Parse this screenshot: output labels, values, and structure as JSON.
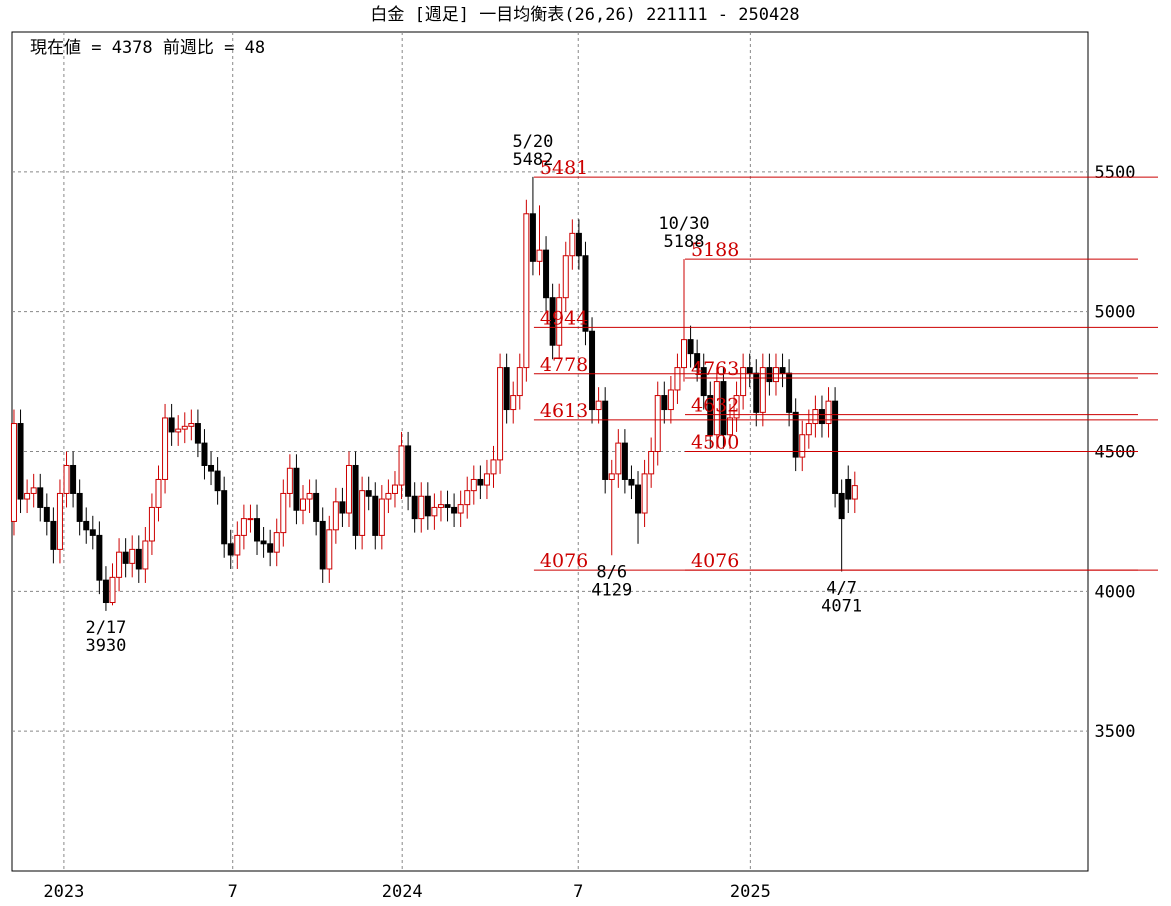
{
  "chart_data": {
    "type": "candlestick",
    "title": "白金 [週足]  一目均衡表(26,26)  221111 - 250428",
    "subtitle": "現在値 = 4378  前週比 = 48",
    "up_color": "#cc0000",
    "down_color": "#000000",
    "level_color": "#cc0000",
    "xlim": [
      -0.3,
      163.5
    ],
    "ylim": [
      3000,
      6000
    ],
    "yticks": [
      3500,
      4000,
      4500,
      5000,
      5500
    ],
    "xticks": [
      {
        "value": 7.6,
        "label": "2023"
      },
      {
        "value": 33.3,
        "label": "7"
      },
      {
        "value": 59.1,
        "label": "2024"
      },
      {
        "value": 85.9,
        "label": "7"
      },
      {
        "value": 112.1,
        "label": "2025"
      }
    ],
    "grid": true,
    "open": [
      4250,
      4600,
      4330,
      4350,
      4370,
      4300,
      4250,
      4150,
      4350,
      4450,
      4350,
      4250,
      4220,
      4200,
      4040,
      3960,
      4050,
      4140,
      4100,
      4150,
      4080,
      4180,
      4300,
      4400,
      4620,
      4570,
      4580,
      4590,
      4600,
      4530,
      4450,
      4430,
      4360,
      4170,
      4130,
      4200,
      4260,
      4260,
      4180,
      4170,
      4140,
      4210,
      4350,
      4440,
      4290,
      4330,
      4350,
      4250,
      4080,
      4220,
      4320,
      4280,
      4450,
      4200,
      4360,
      4340,
      4200,
      4330,
      4350,
      4380,
      4520,
      4340,
      4260,
      4340,
      4270,
      4300,
      4310,
      4300,
      4280,
      4310,
      4360,
      4400,
      4380,
      4420,
      4470,
      4800,
      4650,
      4700,
      4800,
      5350,
      5180,
      5220,
      5050,
      4880,
      5050,
      5200,
      5280,
      5200,
      4930,
      4650,
      4680,
      4400,
      4420,
      4530,
      4400,
      4380,
      4280,
      4420,
      4500,
      4700,
      4650,
      4720,
      4800,
      4900,
      4850,
      4800,
      4700,
      4560,
      4750,
      4560,
      4620,
      4700,
      4800,
      4780,
      4640,
      4800,
      4750,
      4800,
      4780,
      4640,
      4480,
      4560,
      4600,
      4650,
      4600,
      4680,
      4350,
      4400,
      4330
    ],
    "high": [
      4650,
      4650,
      4400,
      4420,
      4420,
      4350,
      4300,
      4400,
      4500,
      4500,
      4400,
      4300,
      4270,
      4250,
      4090,
      4100,
      4190,
      4190,
      4200,
      4200,
      4230,
      4350,
      4450,
      4670,
      4670,
      4630,
      4640,
      4650,
      4650,
      4580,
      4500,
      4480,
      4410,
      4220,
      4250,
      4310,
      4310,
      4310,
      4230,
      4220,
      4260,
      4400,
      4490,
      4490,
      4380,
      4400,
      4400,
      4300,
      4270,
      4370,
      4370,
      4500,
      4500,
      4410,
      4410,
      4390,
      4380,
      4400,
      4430,
      4570,
      4570,
      4390,
      4390,
      4390,
      4350,
      4360,
      4360,
      4350,
      4360,
      4410,
      4450,
      4450,
      4470,
      4520,
      4850,
      4850,
      4750,
      4850,
      5400,
      5482,
      5380,
      5270,
      5100,
      5100,
      5250,
      5330,
      5330,
      5250,
      4980,
      4730,
      4730,
      4470,
      4580,
      4580,
      4450,
      4430,
      4470,
      4550,
      4750,
      4750,
      4770,
      4850,
      5188,
      4950,
      4900,
      4850,
      4750,
      4800,
      4800,
      4670,
      4750,
      4850,
      4850,
      4830,
      4850,
      4850,
      4850,
      4850,
      4830,
      4690,
      4610,
      4650,
      4700,
      4700,
      4730,
      4730,
      4400,
      4450,
      4428
    ],
    "low": [
      4200,
      4280,
      4280,
      4300,
      4250,
      4200,
      4100,
      4100,
      4300,
      4300,
      4200,
      4170,
      4150,
      3990,
      3930,
      3950,
      4000,
      4050,
      4050,
      4030,
      4030,
      4130,
      4250,
      4350,
      4520,
      4520,
      4530,
      4540,
      4480,
      4400,
      4380,
      4310,
      4120,
      4080,
      4080,
      4150,
      4210,
      4130,
      4120,
      4090,
      4090,
      4160,
      4300,
      4240,
      4240,
      4280,
      4200,
      4030,
      4030,
      4170,
      4230,
      4230,
      4150,
      4150,
      4290,
      4150,
      4150,
      4280,
      4300,
      4330,
      4290,
      4210,
      4210,
      4220,
      4220,
      4250,
      4250,
      4230,
      4230,
      4260,
      4310,
      4330,
      4330,
      4370,
      4420,
      4600,
      4600,
      4650,
      4750,
      5130,
      5130,
      5000,
      4830,
      4830,
      5000,
      5150,
      5150,
      4880,
      4600,
      4600,
      4350,
      4129,
      4370,
      4350,
      4330,
      4170,
      4230,
      4370,
      4450,
      4600,
      4600,
      4670,
      4750,
      4800,
      4750,
      4650,
      4510,
      4510,
      4510,
      4510,
      4570,
      4650,
      4730,
      4590,
      4590,
      4700,
      4700,
      4730,
      4590,
      4430,
      4430,
      4510,
      4550,
      4550,
      4550,
      4300,
      4071,
      4280,
      4280
    ],
    "close": [
      4600,
      4330,
      4350,
      4370,
      4300,
      4250,
      4150,
      4350,
      4450,
      4350,
      4250,
      4220,
      4200,
      4040,
      3960,
      4050,
      4140,
      4100,
      4150,
      4080,
      4180,
      4300,
      4400,
      4620,
      4570,
      4580,
      4590,
      4600,
      4530,
      4450,
      4430,
      4360,
      4170,
      4130,
      4200,
      4260,
      4260,
      4180,
      4170,
      4140,
      4210,
      4350,
      4440,
      4290,
      4330,
      4350,
      4250,
      4080,
      4220,
      4320,
      4280,
      4450,
      4200,
      4360,
      4340,
      4200,
      4330,
      4350,
      4380,
      4520,
      4340,
      4260,
      4340,
      4270,
      4300,
      4310,
      4300,
      4280,
      4310,
      4360,
      4400,
      4380,
      4420,
      4470,
      4800,
      4650,
      4700,
      4800,
      5350,
      5180,
      5220,
      5050,
      4880,
      5050,
      5200,
      5280,
      5200,
      4930,
      4650,
      4680,
      4400,
      4420,
      4530,
      4400,
      4380,
      4280,
      4420,
      4500,
      4700,
      4650,
      4720,
      4800,
      4900,
      4850,
      4800,
      4700,
      4560,
      4750,
      4560,
      4620,
      4700,
      4800,
      4780,
      4640,
      4800,
      4750,
      4800,
      4780,
      4640,
      4480,
      4560,
      4600,
      4650,
      4600,
      4680,
      4350,
      4260,
      4330,
      4378
    ],
    "levels": [
      {
        "value": 5481,
        "start": 79
      },
      {
        "value": 5188,
        "start": 102
      },
      {
        "value": 4944,
        "start": 79
      },
      {
        "value": 4778,
        "start": 79
      },
      {
        "value": 4763,
        "start": 102
      },
      {
        "value": 4632,
        "start": 102
      },
      {
        "value": 4613,
        "start": 79
      },
      {
        "value": 4500,
        "start": 102
      },
      {
        "value": 4076,
        "start": 79
      },
      {
        "value": 4076,
        "start": 102
      }
    ],
    "annotations": [
      {
        "index": 14,
        "date": "2/17",
        "value": 3930
      },
      {
        "index": 79,
        "date": "5/20",
        "value": 5482
      },
      {
        "index": 91,
        "date": "8/6",
        "value": 4129
      },
      {
        "index": 102,
        "date": "10/30",
        "value": 5188
      },
      {
        "index": 126,
        "date": "4/7",
        "value": 4071
      }
    ]
  }
}
